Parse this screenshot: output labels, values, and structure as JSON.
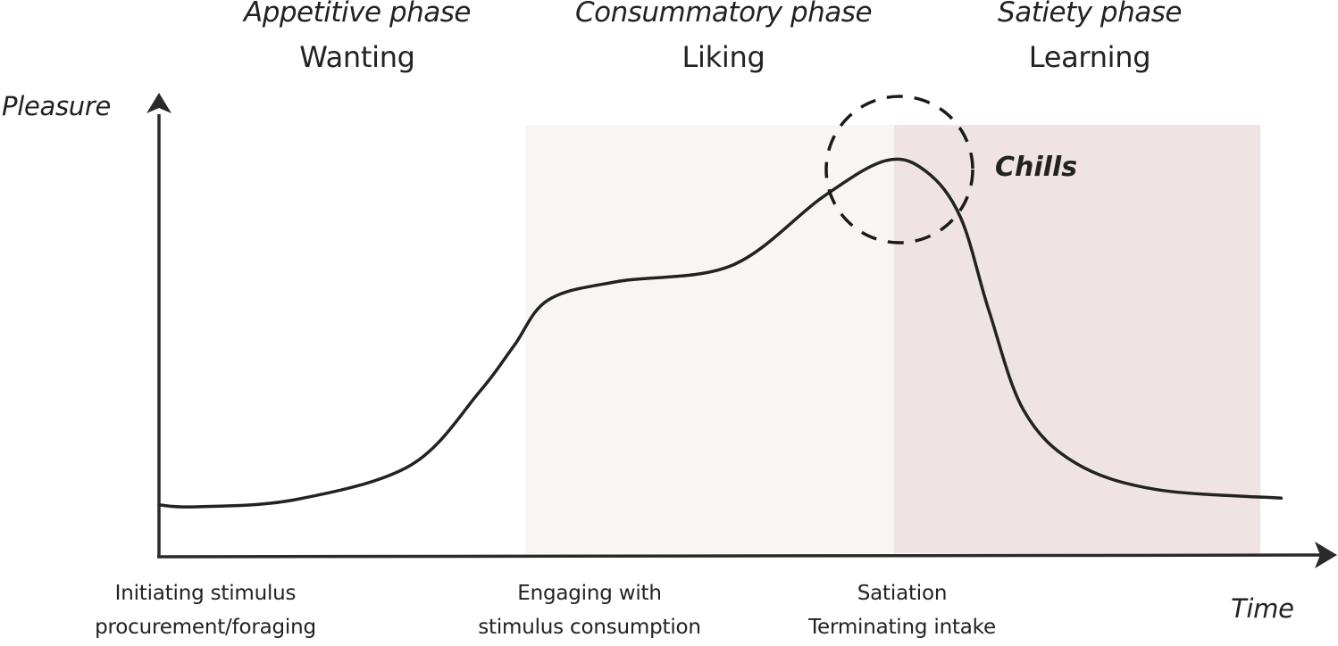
{
  "phases": [
    {
      "name": "Appetitive phase",
      "sub": "Wanting"
    },
    {
      "name": "Consummatory phase",
      "sub": "Liking"
    },
    {
      "name": "Satiety phase",
      "sub": "Learning"
    }
  ],
  "bottom_labels": [
    {
      "line1": "Initiating stimulus",
      "line2": "procurement/foraging"
    },
    {
      "line1": "Engaging with",
      "line2": "stimulus consumption"
    },
    {
      "line1": "Satiation",
      "line2": "Terminating intake"
    }
  ],
  "annotation": {
    "label": "Chills"
  },
  "colors": {
    "consummatory_region": "#f9f5f5",
    "satiety_region": "#f0e3e4",
    "line": "#222222"
  },
  "chart_data": {
    "type": "line",
    "title": "",
    "xlabel": "Time",
    "ylabel": "Pleasure",
    "xlim": [
      0,
      100
    ],
    "ylim": [
      0,
      100
    ],
    "grid": false,
    "regions": [
      {
        "name": "Consummatory phase",
        "x": [
          32,
          64.2
        ]
      },
      {
        "name": "Satiety phase",
        "x": [
          64.2,
          96.2
        ]
      }
    ],
    "series": [
      {
        "name": "Pleasure",
        "x": [
          0,
          3.3,
          12,
          22,
          28,
          31,
          34,
          40,
          50,
          58,
          63.5,
          67,
          70,
          72.5,
          75.5,
          80,
          87,
          98
        ],
        "y": [
          11.3,
          10.9,
          12.5,
          20,
          36,
          46,
          56,
          60,
          63.5,
          78.5,
          86.4,
          84,
          74,
          53.5,
          32,
          20.5,
          14.7,
          12.8
        ]
      }
    ],
    "annotations": [
      {
        "text": "Chills",
        "x": 64.7,
        "y": 84,
        "shape": "dashed-circle"
      }
    ]
  }
}
